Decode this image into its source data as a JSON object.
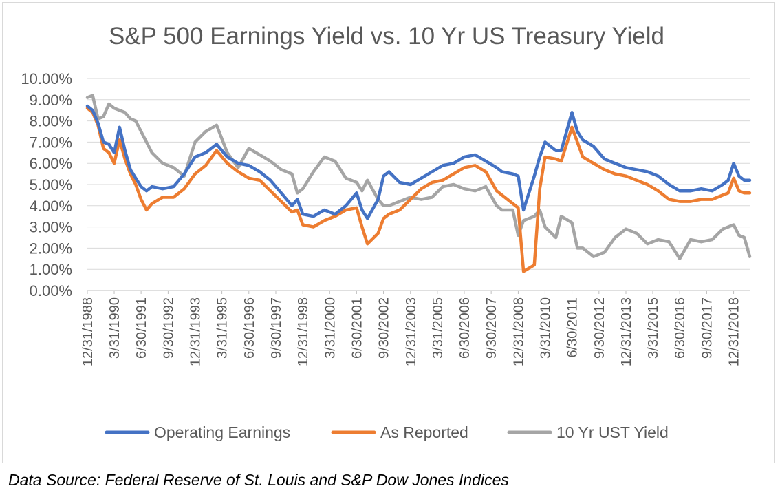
{
  "source_note": "Data Source: Federal Reserve of St. Louis and S&P Dow Jones Indices",
  "chart_data": {
    "type": "line",
    "title": "S&P 500 Earnings Yield vs. 10 Yr US Treasury Yield",
    "xlabel": "",
    "ylabel": "",
    "y_unit": "%",
    "ylim": [
      0,
      10
    ],
    "yticks": [
      "0.00%",
      "1.00%",
      "2.00%",
      "3.00%",
      "4.00%",
      "5.00%",
      "6.00%",
      "7.00%",
      "8.00%",
      "9.00%",
      "10.00%"
    ],
    "x_tick_labels": [
      "12/31/1988",
      "3/31/1990",
      "6/30/1991",
      "9/30/1992",
      "12/31/1993",
      "3/31/1995",
      "6/30/1996",
      "9/30/1997",
      "12/31/1998",
      "3/31/2000",
      "6/30/2001",
      "9/30/2002",
      "12/31/2003",
      "3/31/2005",
      "6/30/2006",
      "9/30/2007",
      "12/31/2008",
      "3/31/2010",
      "6/30/2011",
      "9/30/2012",
      "12/31/2013",
      "3/31/2015",
      "6/30/2016",
      "9/30/2017",
      "12/31/2018"
    ],
    "x_range": [
      "12/31/1988",
      "9/30/2019"
    ],
    "grid": "horizontal",
    "legend_position": "bottom",
    "series": [
      {
        "name": "Operating Earnings",
        "color": "#4472c4",
        "x": [
          "12/31/1988",
          "3/31/1989",
          "6/30/1989",
          "9/30/1989",
          "12/31/1989",
          "3/31/1990",
          "6/30/1990",
          "9/30/1990",
          "12/31/1990",
          "3/31/1991",
          "6/30/1991",
          "9/30/1991",
          "12/31/1991",
          "6/30/1992",
          "12/31/1992",
          "6/30/1993",
          "12/31/1993",
          "6/30/1994",
          "12/31/1994",
          "6/30/1995",
          "12/31/1995",
          "6/30/1996",
          "12/31/1996",
          "6/30/1997",
          "12/31/1997",
          "6/30/1998",
          "9/30/1998",
          "12/31/1998",
          "6/30/1999",
          "12/31/1999",
          "6/30/2000",
          "12/31/2000",
          "6/30/2001",
          "9/30/2001",
          "12/31/2001",
          "6/30/2002",
          "9/30/2002",
          "12/31/2002",
          "6/30/2003",
          "12/31/2003",
          "6/30/2004",
          "12/31/2004",
          "6/30/2005",
          "12/31/2005",
          "6/30/2006",
          "12/31/2006",
          "6/30/2007",
          "12/31/2007",
          "3/31/2008",
          "9/30/2008",
          "12/31/2008",
          "3/31/2009",
          "9/30/2009",
          "12/31/2009",
          "3/31/2010",
          "9/30/2010",
          "12/31/2010",
          "6/30/2011",
          "9/30/2011",
          "12/31/2011",
          "6/30/2012",
          "12/31/2012",
          "6/30/2013",
          "12/31/2013",
          "6/30/2014",
          "12/31/2014",
          "6/30/2015",
          "12/31/2015",
          "6/30/2016",
          "12/31/2016",
          "6/30/2017",
          "12/31/2017",
          "6/30/2018",
          "9/30/2018",
          "12/31/2018",
          "3/31/2019",
          "6/30/2019",
          "9/30/2019"
        ],
        "values": [
          8.7,
          8.5,
          7.9,
          7.0,
          6.9,
          6.5,
          7.7,
          6.6,
          5.7,
          5.3,
          4.9,
          4.7,
          4.9,
          4.8,
          4.9,
          5.5,
          6.3,
          6.5,
          6.9,
          6.3,
          6.0,
          5.9,
          5.6,
          5.2,
          4.6,
          4.0,
          4.3,
          3.6,
          3.5,
          3.8,
          3.6,
          4.0,
          4.6,
          3.8,
          3.4,
          4.3,
          5.4,
          5.6,
          5.1,
          5.0,
          5.3,
          5.6,
          5.9,
          6.0,
          6.3,
          6.4,
          6.1,
          5.8,
          5.6,
          5.5,
          5.4,
          3.8,
          5.4,
          6.3,
          7.0,
          6.6,
          6.6,
          8.4,
          7.5,
          7.1,
          6.8,
          6.2,
          6.0,
          5.8,
          5.7,
          5.6,
          5.4,
          5.0,
          4.7,
          4.7,
          4.8,
          4.7,
          5.0,
          5.2,
          6.0,
          5.4,
          5.2,
          5.2
        ]
      },
      {
        "name": "As Reported",
        "color": "#ed7d31",
        "x": [
          "12/31/1988",
          "3/31/1989",
          "6/30/1989",
          "9/30/1989",
          "12/31/1989",
          "3/31/1990",
          "6/30/1990",
          "9/30/1990",
          "12/31/1990",
          "3/31/1991",
          "6/30/1991",
          "9/30/1991",
          "12/31/1991",
          "6/30/1992",
          "12/31/1992",
          "6/30/1993",
          "12/31/1993",
          "6/30/1994",
          "12/31/1994",
          "6/30/1995",
          "12/31/1995",
          "6/30/1996",
          "12/31/1996",
          "6/30/1997",
          "12/31/1997",
          "6/30/1998",
          "9/30/1998",
          "12/31/1998",
          "6/30/1999",
          "12/31/1999",
          "6/30/2000",
          "12/31/2000",
          "6/30/2001",
          "9/30/2001",
          "12/31/2001",
          "6/30/2002",
          "9/30/2002",
          "12/31/2002",
          "6/30/2003",
          "12/31/2003",
          "6/30/2004",
          "12/31/2004",
          "6/30/2005",
          "12/31/2005",
          "6/30/2006",
          "12/31/2006",
          "6/30/2007",
          "12/31/2007",
          "3/31/2008",
          "9/30/2008",
          "12/31/2008",
          "3/31/2009",
          "9/30/2009",
          "12/31/2009",
          "3/31/2010",
          "9/30/2010",
          "12/31/2010",
          "6/30/2011",
          "9/30/2011",
          "12/31/2011",
          "6/30/2012",
          "12/31/2012",
          "6/30/2013",
          "12/31/2013",
          "6/30/2014",
          "12/31/2014",
          "6/30/2015",
          "12/31/2015",
          "6/30/2016",
          "12/31/2016",
          "6/30/2017",
          "12/31/2017",
          "6/30/2018",
          "9/30/2018",
          "12/31/2018",
          "3/31/2019",
          "6/30/2019",
          "9/30/2019"
        ],
        "values": [
          8.6,
          8.4,
          7.8,
          6.7,
          6.5,
          6.0,
          7.1,
          6.2,
          5.5,
          5.0,
          4.3,
          3.8,
          4.1,
          4.4,
          4.4,
          4.8,
          5.5,
          5.9,
          6.6,
          6.0,
          5.6,
          5.3,
          5.2,
          4.7,
          4.2,
          3.7,
          3.8,
          3.1,
          3.0,
          3.3,
          3.5,
          3.8,
          3.9,
          3.0,
          2.2,
          2.7,
          3.4,
          3.6,
          3.8,
          4.3,
          4.8,
          5.1,
          5.2,
          5.5,
          5.8,
          5.9,
          5.6,
          4.7,
          4.5,
          4.1,
          3.9,
          0.9,
          1.2,
          4.8,
          6.3,
          6.2,
          6.1,
          7.7,
          7.0,
          6.3,
          6.0,
          5.7,
          5.5,
          5.4,
          5.2,
          5.0,
          4.7,
          4.3,
          4.2,
          4.2,
          4.3,
          4.3,
          4.5,
          4.6,
          5.3,
          4.7,
          4.6,
          4.6
        ]
      },
      {
        "name": "10 Yr UST Yield",
        "color": "#a5a5a5",
        "x": [
          "12/31/1988",
          "3/31/1989",
          "6/30/1989",
          "9/30/1989",
          "12/31/1989",
          "3/31/1990",
          "6/30/1990",
          "9/30/1990",
          "12/31/1990",
          "3/31/1991",
          "6/30/1991",
          "9/30/1991",
          "12/31/1991",
          "6/30/1992",
          "12/31/1992",
          "6/30/1993",
          "12/31/1993",
          "6/30/1994",
          "12/31/1994",
          "6/30/1995",
          "12/31/1995",
          "6/30/1996",
          "12/31/1996",
          "6/30/1997",
          "12/31/1997",
          "6/30/1998",
          "9/30/1998",
          "12/31/1998",
          "6/30/1999",
          "12/31/1999",
          "6/30/2000",
          "12/31/2000",
          "6/30/2001",
          "9/30/2001",
          "12/31/2001",
          "6/30/2002",
          "9/30/2002",
          "12/31/2002",
          "6/30/2003",
          "12/31/2003",
          "6/30/2004",
          "12/31/2004",
          "6/30/2005",
          "12/31/2005",
          "6/30/2006",
          "12/31/2006",
          "6/30/2007",
          "12/31/2007",
          "3/31/2008",
          "9/30/2008",
          "12/31/2008",
          "3/31/2009",
          "9/30/2009",
          "12/31/2009",
          "3/31/2010",
          "9/30/2010",
          "12/31/2010",
          "6/30/2011",
          "9/30/2011",
          "12/31/2011",
          "6/30/2012",
          "12/31/2012",
          "6/30/2013",
          "12/31/2013",
          "6/30/2014",
          "12/31/2014",
          "6/30/2015",
          "12/31/2015",
          "6/30/2016",
          "12/31/2016",
          "6/30/2017",
          "12/31/2017",
          "6/30/2018",
          "9/30/2018",
          "12/31/2018",
          "3/31/2019",
          "6/30/2019",
          "9/30/2019"
        ],
        "values": [
          9.1,
          9.2,
          8.1,
          8.2,
          8.8,
          8.6,
          8.5,
          8.4,
          8.1,
          8.0,
          7.5,
          7.0,
          6.5,
          6.0,
          5.8,
          5.4,
          7.0,
          7.5,
          7.8,
          6.5,
          5.8,
          6.7,
          6.4,
          6.1,
          5.7,
          5.5,
          4.6,
          4.8,
          5.6,
          6.3,
          6.1,
          5.3,
          5.1,
          4.7,
          5.2,
          4.3,
          4.0,
          4.0,
          4.2,
          4.4,
          4.3,
          4.4,
          4.9,
          5.0,
          4.8,
          4.7,
          4.9,
          4.0,
          3.8,
          3.8,
          2.6,
          3.3,
          3.5,
          3.8,
          3.0,
          2.5,
          3.5,
          3.2,
          2.0,
          2.0,
          1.6,
          1.8,
          2.5,
          2.9,
          2.7,
          2.2,
          2.4,
          2.3,
          1.5,
          2.4,
          2.3,
          2.4,
          2.9,
          3.0,
          3.1,
          2.6,
          2.5,
          1.6
        ]
      }
    ]
  }
}
